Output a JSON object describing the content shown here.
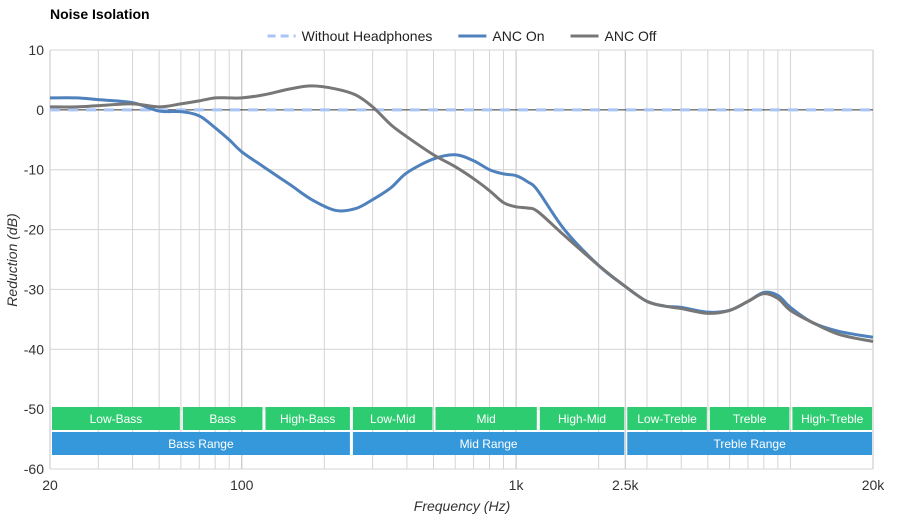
{
  "chart_data": {
    "type": "line",
    "title": "Noise Isolation",
    "xlabel": "Frequency (Hz)",
    "ylabel": "Reduction (dB)",
    "xscale": "log",
    "xlim": [
      20,
      20000
    ],
    "ylim": [
      -60,
      10
    ],
    "yticks": [
      10,
      0,
      -10,
      -20,
      -30,
      -40,
      -50,
      -60
    ],
    "xticks": [
      {
        "value": 20,
        "label": "20"
      },
      {
        "value": 100,
        "label": "100"
      },
      {
        "value": 1000,
        "label": "1k"
      },
      {
        "value": 2500,
        "label": "2.5k"
      },
      {
        "value": 20000,
        "label": "20k"
      }
    ],
    "legend_position": "top",
    "grid": true,
    "series": [
      {
        "name": "Without Headphones",
        "color": "#aac4f5",
        "dashed": true,
        "x": [
          20,
          20000
        ],
        "y": [
          0,
          0
        ]
      },
      {
        "name": "ANC On",
        "color": "#4f81bd",
        "dashed": false,
        "x": [
          20,
          25,
          30,
          40,
          50,
          60,
          70,
          80,
          90,
          100,
          120,
          150,
          180,
          220,
          260,
          300,
          350,
          400,
          500,
          600,
          700,
          800,
          900,
          1000,
          1100,
          1200,
          1500,
          2000,
          2500,
          3000,
          3500,
          4000,
          5000,
          6000,
          7000,
          8000,
          9000,
          10000,
          12000,
          15000,
          20000
        ],
        "y": [
          2,
          2,
          1.7,
          1.2,
          -0.2,
          -0.3,
          -1,
          -3,
          -5,
          -7,
          -9.5,
          -12.5,
          -15,
          -16.8,
          -16.5,
          -15,
          -13,
          -10.5,
          -8.2,
          -7.5,
          -8.5,
          -10,
          -10.7,
          -11,
          -12,
          -13.5,
          -20,
          -26,
          -29.5,
          -32,
          -32.8,
          -33,
          -33.8,
          -33.5,
          -32,
          -30.5,
          -31,
          -33,
          -35.5,
          -37,
          -38
        ]
      },
      {
        "name": "ANC Off",
        "color": "#777777",
        "dashed": false,
        "x": [
          20,
          25,
          30,
          40,
          50,
          60,
          70,
          80,
          90,
          100,
          120,
          150,
          180,
          220,
          260,
          300,
          350,
          400,
          500,
          600,
          700,
          800,
          900,
          1000,
          1100,
          1200,
          1500,
          2000,
          2500,
          3000,
          3500,
          4000,
          5000,
          6000,
          7000,
          8000,
          9000,
          10000,
          12000,
          15000,
          20000
        ],
        "y": [
          0.5,
          0.5,
          0.7,
          1,
          0.5,
          1,
          1.5,
          2,
          2,
          2,
          2.5,
          3.5,
          4,
          3.5,
          2.5,
          0.5,
          -2.5,
          -4.5,
          -7.5,
          -9.5,
          -11.5,
          -13.5,
          -15.5,
          -16.2,
          -16.4,
          -17,
          -21,
          -26,
          -29.5,
          -32,
          -32.8,
          -33.2,
          -34,
          -33.5,
          -32,
          -30.7,
          -31.5,
          -33.5,
          -35.5,
          -37.5,
          -38.7
        ]
      }
    ],
    "bands": [
      {
        "label": "Low-Bass",
        "from": 20,
        "to": 60,
        "row": 0
      },
      {
        "label": "Bass",
        "from": 60,
        "to": 120,
        "row": 0
      },
      {
        "label": "High-Bass",
        "from": 120,
        "to": 250,
        "row": 0
      },
      {
        "label": "Low-Mid",
        "from": 250,
        "to": 500,
        "row": 0
      },
      {
        "label": "Mid",
        "from": 500,
        "to": 1200,
        "row": 0
      },
      {
        "label": "High-Mid",
        "from": 1200,
        "to": 2500,
        "row": 0
      },
      {
        "label": "Low-Treble",
        "from": 2500,
        "to": 5000,
        "row": 0
      },
      {
        "label": "Treble",
        "from": 5000,
        "to": 10000,
        "row": 0
      },
      {
        "label": "High-Treble",
        "from": 10000,
        "to": 20000,
        "row": 0
      },
      {
        "label": "Bass Range",
        "from": 20,
        "to": 250,
        "row": 1
      },
      {
        "label": "Mid Range",
        "from": 250,
        "to": 2500,
        "row": 1
      },
      {
        "label": "Treble Range",
        "from": 2500,
        "to": 20000,
        "row": 1
      }
    ],
    "band_colors": {
      "top": "#2ecc71",
      "bottom": "#3498db"
    }
  }
}
